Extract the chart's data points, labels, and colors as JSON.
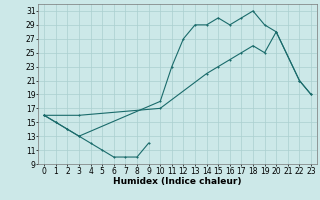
{
  "bg_color": "#cce8e8",
  "grid_color": "#aacfcf",
  "line_color": "#1a6b6b",
  "xlabel": "Humidex (Indice chaleur)",
  "xlabel_fontsize": 6.5,
  "tick_fontsize": 5.5,
  "ylim": [
    9,
    32
  ],
  "xlim": [
    -0.5,
    23.5
  ],
  "yticks": [
    9,
    11,
    13,
    15,
    17,
    19,
    21,
    23,
    25,
    27,
    29,
    31
  ],
  "xticks": [
    0,
    1,
    2,
    3,
    4,
    5,
    6,
    7,
    8,
    9,
    10,
    11,
    12,
    13,
    14,
    15,
    16,
    17,
    18,
    19,
    20,
    21,
    22,
    23
  ],
  "line1_x": [
    0,
    1,
    2,
    3,
    10,
    11,
    12,
    13,
    14,
    15,
    16,
    17,
    18,
    19,
    20,
    22,
    23
  ],
  "line1_y": [
    16,
    15,
    14,
    13,
    18,
    23,
    27,
    29,
    29,
    30,
    29,
    30,
    31,
    29,
    28,
    21,
    19
  ],
  "line2_x": [
    0,
    3,
    10,
    14,
    15,
    16,
    17,
    18,
    19,
    20,
    22,
    23
  ],
  "line2_y": [
    16,
    16,
    17,
    22,
    23,
    24,
    25,
    26,
    25,
    28,
    21,
    19
  ],
  "line3_x": [
    0,
    1,
    2,
    3,
    4,
    5,
    6,
    7,
    8,
    9
  ],
  "line3_y": [
    16,
    15,
    14,
    13,
    12,
    11,
    10,
    10,
    10,
    12
  ]
}
